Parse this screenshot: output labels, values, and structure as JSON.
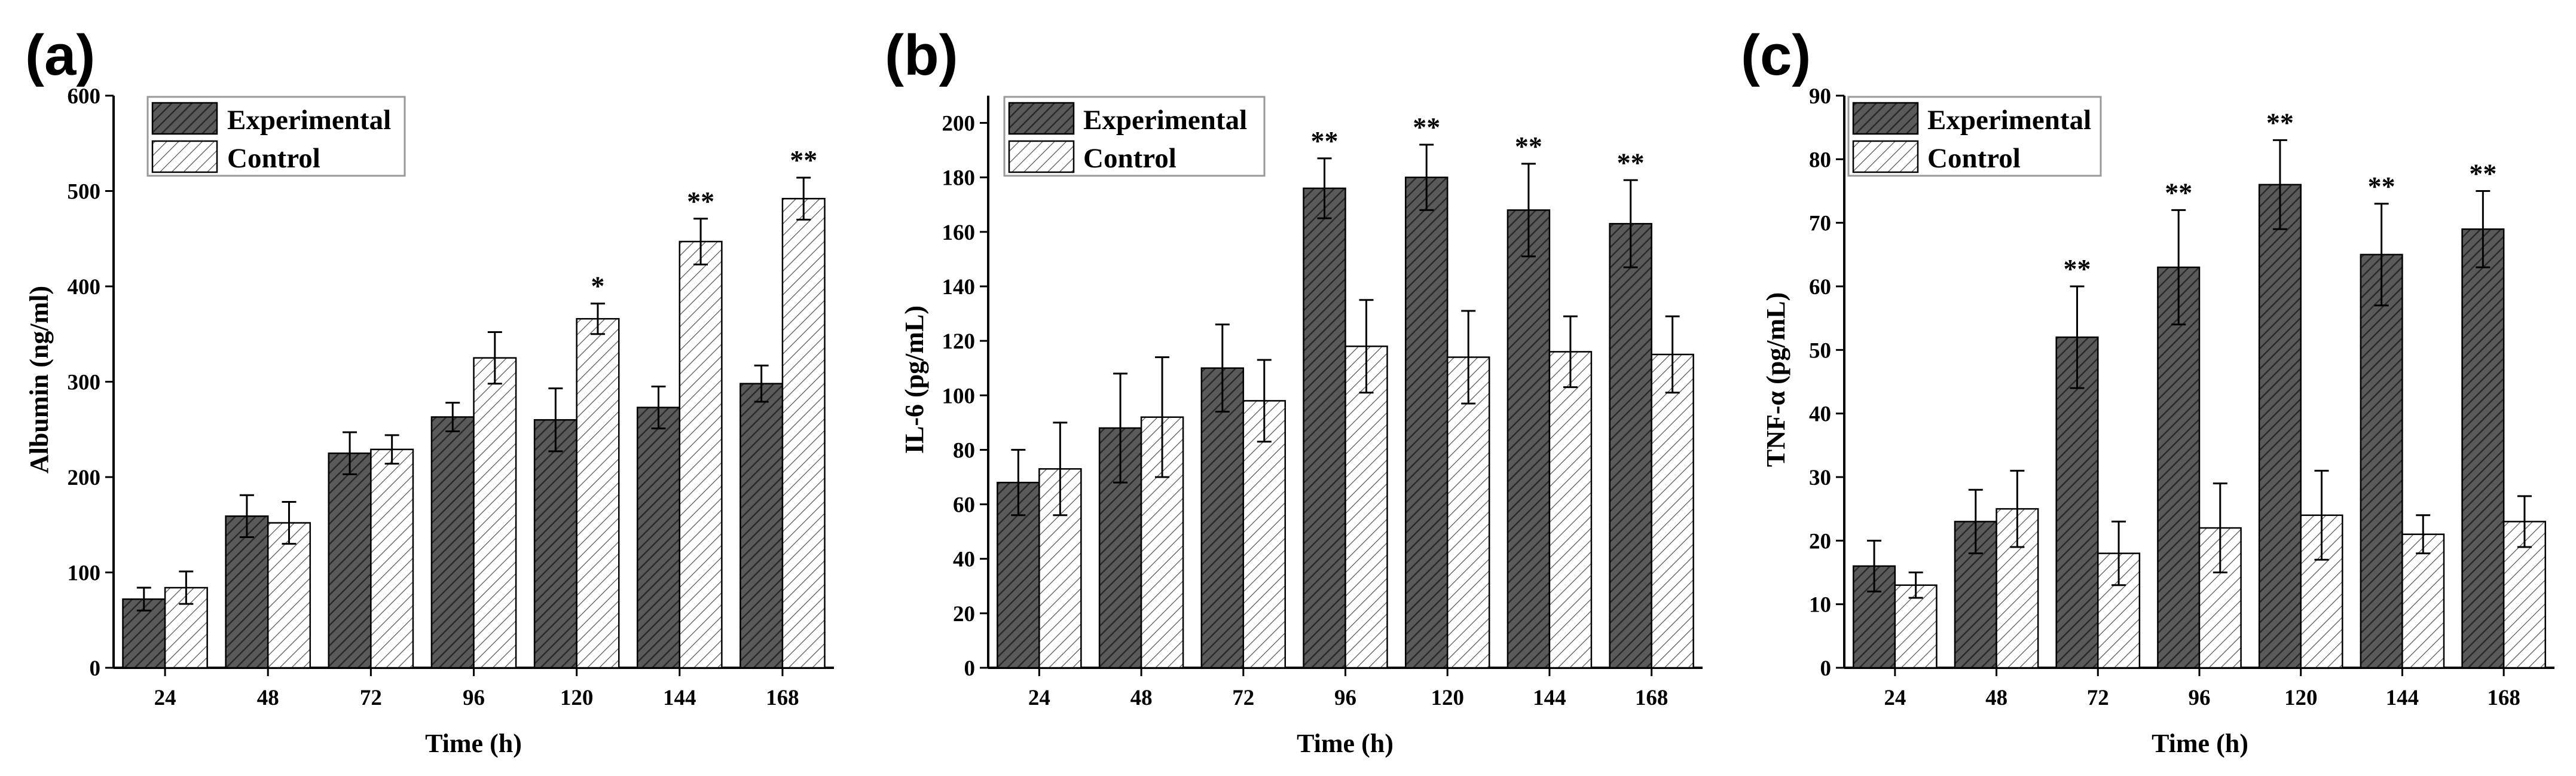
{
  "colors": {
    "experimental_fill": "#5a5a5a",
    "experimental_hatch": "#2a2a2a",
    "control_fill": "#ffffff",
    "control_hatch": "#555555",
    "axis": "#000000"
  },
  "chart_data": [
    {
      "panel": "(a)",
      "type": "bar",
      "xlabel": "Time (h)",
      "ylabel": "Albumin (ng/ml)",
      "ylim": [
        0,
        600
      ],
      "yticks": [
        0,
        100,
        200,
        300,
        400,
        500,
        600
      ],
      "categories": [
        "24",
        "48",
        "72",
        "96",
        "120",
        "144",
        "168"
      ],
      "legend_position": "top-left",
      "series": [
        {
          "name": "Experimental",
          "values": [
            72,
            159,
            225,
            263,
            260,
            273,
            298
          ],
          "errors": [
            12,
            22,
            22,
            15,
            33,
            22,
            19
          ],
          "significance": [
            "",
            "",
            "",
            "",
            "",
            "",
            ""
          ]
        },
        {
          "name": "Control",
          "values": [
            84,
            152,
            229,
            325,
            366,
            447,
            492
          ],
          "errors": [
            17,
            22,
            15,
            27,
            16,
            24,
            22
          ],
          "significance": [
            "",
            "",
            "",
            "",
            "*",
            "**",
            "**"
          ]
        }
      ]
    },
    {
      "panel": "(b)",
      "type": "bar",
      "xlabel": "Time (h)",
      "ylabel": "IL-6 (pg/mL)",
      "ylim": [
        0,
        210
      ],
      "yticks": [
        0,
        20,
        40,
        60,
        80,
        100,
        120,
        140,
        160,
        180,
        200
      ],
      "categories": [
        "24",
        "48",
        "72",
        "96",
        "120",
        "144",
        "168"
      ],
      "legend_position": "top-left",
      "series": [
        {
          "name": "Experimental",
          "values": [
            68,
            88,
            110,
            176,
            180,
            168,
            163
          ],
          "errors": [
            12,
            20,
            16,
            11,
            12,
            17,
            16
          ],
          "significance": [
            "",
            "",
            "",
            "**",
            "**",
            "**",
            "**"
          ]
        },
        {
          "name": "Control",
          "values": [
            73,
            92,
            98,
            118,
            114,
            116,
            115
          ],
          "errors": [
            17,
            22,
            15,
            17,
            17,
            13,
            14
          ],
          "significance": [
            "",
            "",
            "",
            "",
            "",
            "",
            ""
          ]
        }
      ]
    },
    {
      "panel": "(c)",
      "type": "bar",
      "xlabel": "Time (h)",
      "ylabel": "TNF-α (pg/mL)",
      "ylim": [
        0,
        90
      ],
      "yticks": [
        0,
        10,
        20,
        30,
        40,
        50,
        60,
        70,
        80,
        90
      ],
      "categories": [
        "24",
        "48",
        "72",
        "96",
        "120",
        "144",
        "168"
      ],
      "legend_position": "top-left",
      "series": [
        {
          "name": "Experimental",
          "values": [
            16,
            23,
            52,
            63,
            76,
            65,
            69
          ],
          "errors": [
            4,
            5,
            8,
            9,
            7,
            8,
            6
          ],
          "significance": [
            "",
            "",
            "**",
            "**",
            "**",
            "**",
            "**"
          ]
        },
        {
          "name": "Control",
          "values": [
            13,
            25,
            18,
            22,
            24,
            21,
            23
          ],
          "errors": [
            2,
            6,
            5,
            7,
            7,
            3,
            4
          ],
          "significance": [
            "",
            "",
            "",
            "",
            "",
            "",
            ""
          ]
        }
      ]
    }
  ]
}
